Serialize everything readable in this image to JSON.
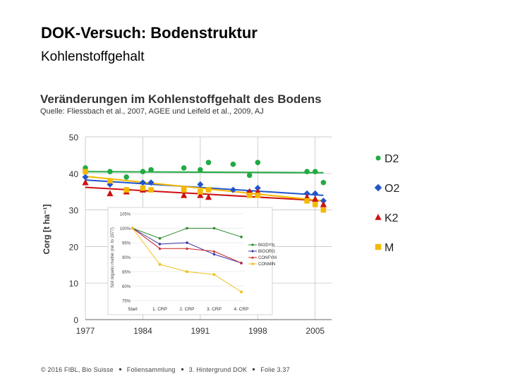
{
  "slide": {
    "title": "DOK-Versuch: Bodenstruktur",
    "subtitle": "Kohlenstoffgehalt",
    "chart_heading": "Veränderungen im Kohlenstoffgehalt des Bodens",
    "chart_source": "Quelle: Fliessbach et al., 2007, AGEE und Leifeld et al., 2009, AJ",
    "footer": {
      "copyright": "© 2016 FIBL, Bio Suisse",
      "collection": "Foliensammlung",
      "section": "3. Hintergrund DOK",
      "slide": "Folie 3.37"
    }
  },
  "colors": {
    "D2": "#22aa44",
    "O2": "#2255cc",
    "K2": "#cc1111",
    "M": "#f5b800",
    "grid": "#bbbbbb"
  },
  "chart_data": [
    {
      "type": "scatter",
      "title": "",
      "xlabel": "",
      "ylabel": "Corg [t ha⁻¹]",
      "xlim": [
        1977,
        2007
      ],
      "ylim": [
        0,
        50
      ],
      "x_ticks": [
        1977,
        1984,
        1991,
        1998,
        2005
      ],
      "y_ticks": [
        0,
        10,
        20,
        30,
        40,
        50
      ],
      "grid": true,
      "legend_position": "right",
      "series": [
        {
          "name": "D2",
          "marker": "circle",
          "points": [
            [
              1977,
              41.5
            ],
            [
              1980,
              40.5
            ],
            [
              1982,
              39
            ],
            [
              1984,
              40.5
            ],
            [
              1985,
              41
            ],
            [
              1989,
              41.5
            ],
            [
              1991,
              41
            ],
            [
              1992,
              43
            ],
            [
              1995,
              42.5
            ],
            [
              1997,
              39.5
            ],
            [
              1998,
              43
            ],
            [
              2004,
              40.5
            ],
            [
              2005,
              40.5
            ],
            [
              2006,
              37.5
            ]
          ],
          "trend": [
            [
              1977,
              40.5
            ],
            [
              2006,
              40.2
            ]
          ]
        },
        {
          "name": "O2",
          "marker": "diamond",
          "points": [
            [
              1977,
              39
            ],
            [
              1980,
              37
            ],
            [
              1982,
              35.5
            ],
            [
              1984,
              37.5
            ],
            [
              1985,
              37.5
            ],
            [
              1991,
              37
            ],
            [
              1995,
              35.5
            ],
            [
              1997,
              35
            ],
            [
              1998,
              36
            ],
            [
              2004,
              34.5
            ],
            [
              2005,
              34.5
            ],
            [
              2006,
              32.5
            ]
          ],
          "trend": [
            [
              1977,
              38.2
            ],
            [
              2006,
              34
            ]
          ]
        },
        {
          "name": "K2",
          "marker": "triangle",
          "points": [
            [
              1977,
              37.5
            ],
            [
              1980,
              34.5
            ],
            [
              1982,
              35
            ],
            [
              1984,
              35.5
            ],
            [
              1989,
              34
            ],
            [
              1991,
              34
            ],
            [
              1992,
              33.5
            ],
            [
              1997,
              35
            ],
            [
              1998,
              35
            ],
            [
              2004,
              33.5
            ],
            [
              2005,
              33
            ],
            [
              2006,
              31.5
            ]
          ],
          "trend": [
            [
              1977,
              36.2
            ],
            [
              2006,
              32.5
            ]
          ]
        },
        {
          "name": "M",
          "marker": "square",
          "points": [
            [
              1977,
              40.5
            ],
            [
              1980,
              38
            ],
            [
              1982,
              35.5
            ],
            [
              1984,
              36
            ],
            [
              1985,
              35.5
            ],
            [
              1989,
              35.5
            ],
            [
              1991,
              35
            ],
            [
              1992,
              35.5
            ],
            [
              1997,
              34
            ],
            [
              1998,
              34
            ],
            [
              2004,
              32.5
            ],
            [
              2005,
              31.5
            ],
            [
              2006,
              30
            ]
          ],
          "trend": [
            [
              1977,
              39.2
            ],
            [
              2006,
              32.5
            ]
          ]
        }
      ]
    },
    {
      "type": "line",
      "title": "",
      "xlabel": "",
      "ylabel": "Soil organic matter (rel. to 1977)",
      "categories": [
        "Start",
        "1. CRP",
        "2. CRP",
        "3. CRP",
        "4. CRP"
      ],
      "y_ticks": [
        "75%",
        "80%",
        "85%",
        "90%",
        "95%",
        "100%",
        "105%"
      ],
      "ylim": [
        75,
        105
      ],
      "grid": true,
      "legend_position": "right",
      "series": [
        {
          "name": "BIODYN",
          "color": "#2a8a2a",
          "marker": "circle",
          "values": [
            100,
            96.5,
            100,
            100,
            97
          ]
        },
        {
          "name": "BIOORG",
          "color": "#3333aa",
          "marker": "diamond",
          "values": [
            100,
            94.5,
            95,
            91,
            88
          ]
        },
        {
          "name": "CONFYM",
          "color": "#cc2222",
          "marker": "triangle",
          "values": [
            100,
            93,
            93,
            92,
            88
          ]
        },
        {
          "name": "CONMIN",
          "color": "#f0c020",
          "marker": "square",
          "values": [
            100,
            87.5,
            85,
            84,
            78
          ]
        }
      ]
    }
  ]
}
